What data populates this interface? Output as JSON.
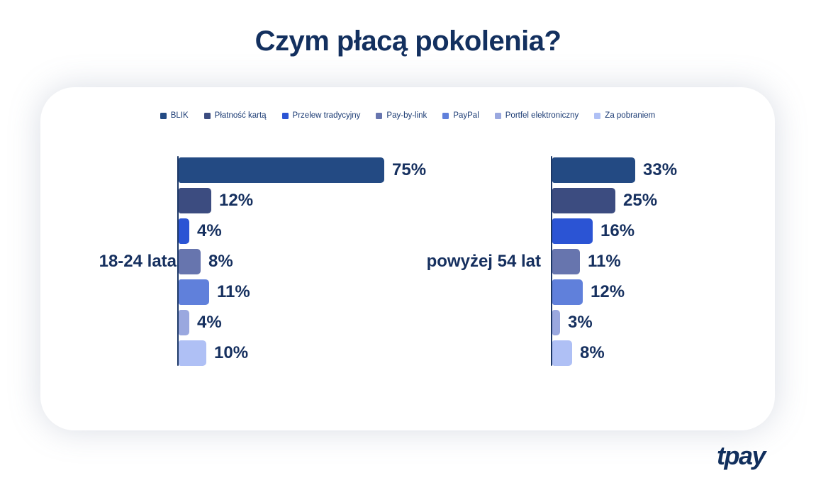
{
  "page": {
    "title": "Czym płacą pokolenia?"
  },
  "brand": {
    "logo_text": "tpay"
  },
  "colors": {
    "title_text": "#13305F",
    "value_text": "#16305F",
    "axis_line": "#1C3766",
    "legend_text": "#1A3A73",
    "card_background": "#FFFFFF"
  },
  "chart_data": {
    "type": "bar",
    "orientation": "horizontal",
    "title": "Czym płacą pokolenia?",
    "legend_position": "top",
    "grid": false,
    "value_suffix": "%",
    "categories": [
      "BLIK",
      "Płatność kartą",
      "Przelew tradycyjny",
      "Pay-by-link",
      "PayPal",
      "Portfel elektroniczny",
      "Za pobraniem"
    ],
    "series_colors": [
      "#234A83",
      "#3C4C80",
      "#2B54D4",
      "#6775AE",
      "#6080DB",
      "#9AA8DF",
      "#AFC0F5"
    ],
    "groups": [
      {
        "label": "18-24 lata",
        "values": [
          75,
          12,
          4,
          8,
          11,
          4,
          10
        ]
      },
      {
        "label": "powyżej 54 lat",
        "values": [
          33,
          25,
          16,
          11,
          12,
          3,
          8
        ]
      }
    ]
  }
}
